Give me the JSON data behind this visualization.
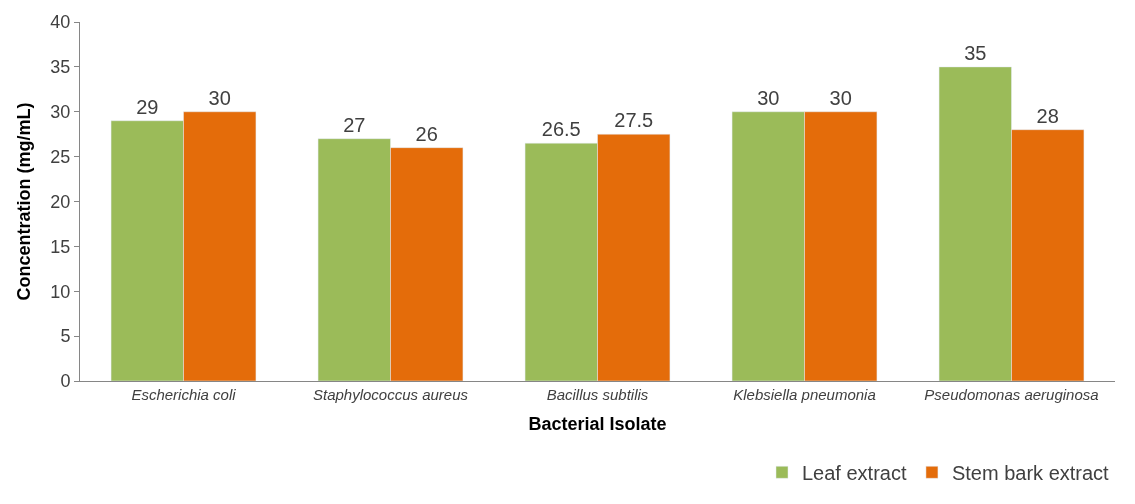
{
  "chart_data": {
    "type": "bar",
    "xlabel": "Bacterial Isolate",
    "ylabel": "Concentration (mg/mL)",
    "categories": [
      "Escherichia coli",
      "Staphylococcus aureus",
      "Bacillus subtilis",
      "Klebsiella pneumonia",
      "Pseudomonas aeruginosa"
    ],
    "series": [
      {
        "name": "Leaf extract",
        "color": "#9bbb59",
        "values": [
          29,
          27,
          26.5,
          30,
          35
        ]
      },
      {
        "name": "Stem bark extract",
        "color": "#e46c0a",
        "values": [
          30,
          26,
          27.5,
          30,
          28
        ]
      }
    ],
    "ylim": [
      0,
      40
    ],
    "yticks": [
      0,
      5,
      10,
      15,
      20,
      25,
      30,
      35,
      40
    ],
    "data_labels": true,
    "legend": "bottom right"
  }
}
